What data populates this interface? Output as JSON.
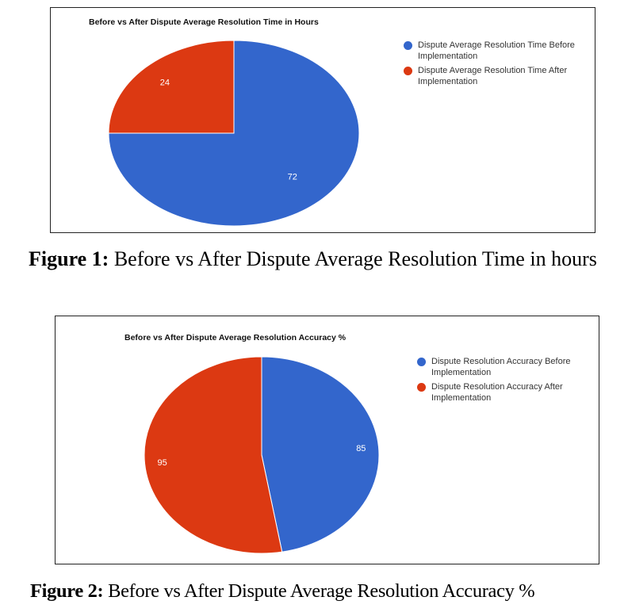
{
  "colors": {
    "blue": "#3366cc",
    "red": "#dc3912",
    "slice_label": "#ffffff"
  },
  "chart_data": [
    {
      "type": "pie",
      "title": "Before vs After Dispute Average Resolution Time in Hours",
      "slices": [
        {
          "label": "Dispute Average Resolution Time Before Implementation",
          "value": 72,
          "color": "#3366cc"
        },
        {
          "label": "Dispute Average Resolution Time After Implementation",
          "value": 24,
          "color": "#dc3912"
        }
      ],
      "legend_position": "right"
    },
    {
      "type": "pie",
      "title": "Before vs After Dispute Average Resolution Accuracy %",
      "slices": [
        {
          "label": "Dispute Resolution Accuracy Before Implementation",
          "value": 85,
          "color": "#3366cc"
        },
        {
          "label": "Dispute Resolution Accuracy After Implementation",
          "value": 95,
          "color": "#dc3912"
        }
      ],
      "legend_position": "right"
    }
  ],
  "captions": [
    {
      "label": "Figure 1:",
      "text": " Before vs After Dispute Average Resolution Time in hours"
    },
    {
      "label": "Figure 2:",
      "text": " Before vs After Dispute Average Resolution Accuracy %"
    }
  ]
}
